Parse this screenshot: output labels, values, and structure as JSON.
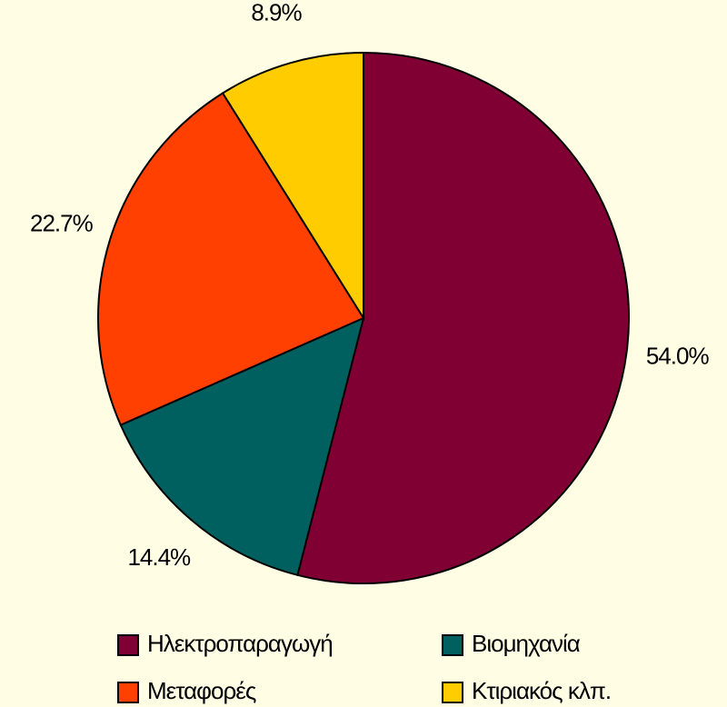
{
  "chart_data": {
    "type": "pie",
    "categories": [
      "Ηλεκτροπαραγωγή",
      "Βιομηχανία",
      "Μεταφορές",
      "Κτιριακός κλπ."
    ],
    "values": [
      54.0,
      14.4,
      22.7,
      8.9
    ],
    "value_labels": [
      "54.0%",
      "14.4%",
      "22.7%",
      "8.9%"
    ],
    "colors": [
      "#800033",
      "#006060",
      "#ff4000",
      "#ffcc00"
    ],
    "legend": "bottom"
  }
}
